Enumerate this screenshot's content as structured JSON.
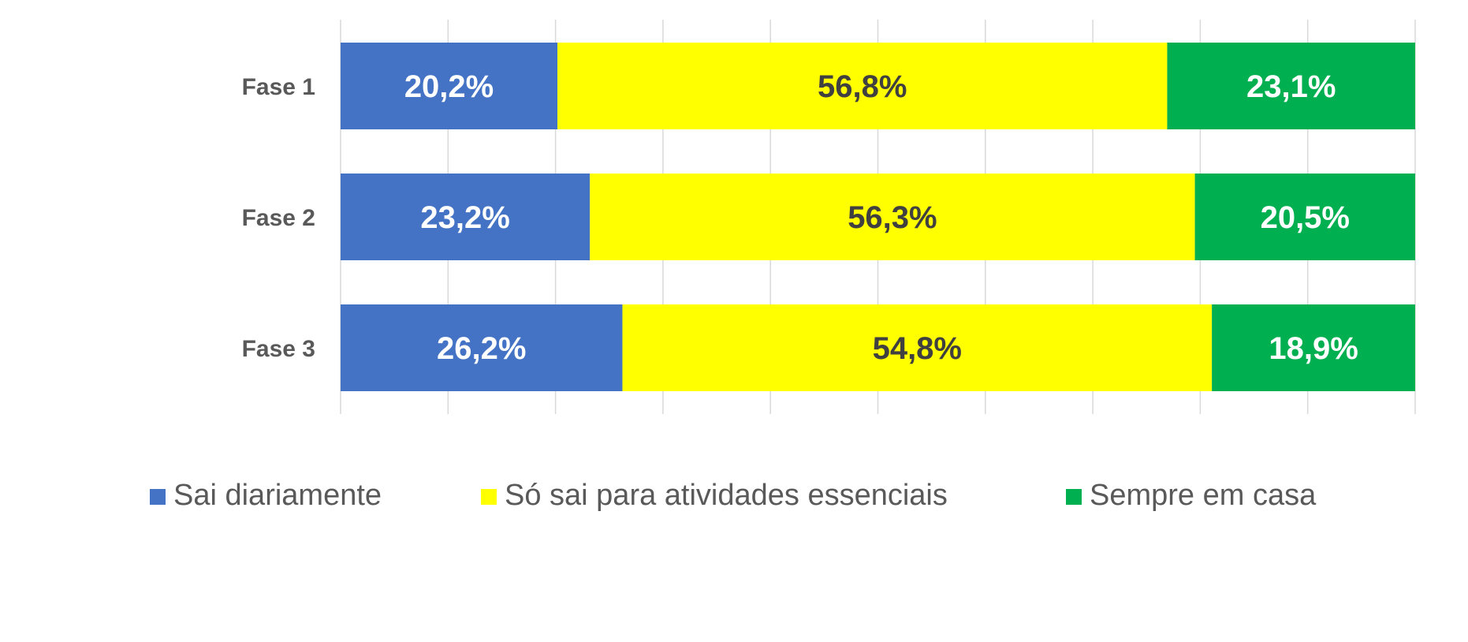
{
  "chart_data": {
    "type": "bar",
    "orientation": "horizontal",
    "stacked": true,
    "percent_stacked": true,
    "categories": [
      "Fase 1",
      "Fase 2",
      "Fase 3"
    ],
    "series": [
      {
        "name": "Sai diariamente",
        "color": "#4472C4",
        "label_color": "#ffffff",
        "values": [
          20.2,
          23.2,
          26.2
        ],
        "labels": [
          "20,2%",
          "23,2%",
          "26,2%"
        ]
      },
      {
        "name": "Só sai para atividades essenciais",
        "color": "#FFFF00",
        "label_color": "#404040",
        "values": [
          56.8,
          56.3,
          54.8
        ],
        "labels": [
          "56,8%",
          "56,3%",
          "54,8%"
        ]
      },
      {
        "name": "Sempre em casa",
        "color": "#00B050",
        "label_color": "#ffffff",
        "values": [
          23.1,
          20.5,
          18.9
        ],
        "labels": [
          "23,1%",
          "20,5%",
          "18,9%"
        ]
      }
    ],
    "xlim": [
      0,
      100
    ],
    "gridlines": true,
    "x_tick_labels_visible": false,
    "legend_position": "bottom",
    "title": "",
    "xlabel": "",
    "ylabel": ""
  }
}
